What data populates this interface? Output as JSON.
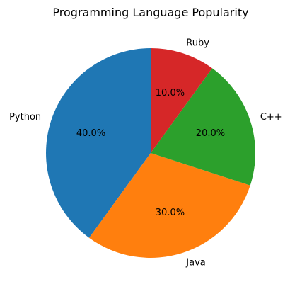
{
  "chart_data": {
    "type": "pie",
    "title": "Programming Language Popularity",
    "categories": [
      "Python",
      "Java",
      "C++",
      "Ruby"
    ],
    "values": [
      40,
      30,
      20,
      10
    ],
    "percent_labels": [
      "40.0%",
      "30.0%",
      "20.0%",
      "10.0%"
    ],
    "colors": [
      "#1f77b4",
      "#ff7f0e",
      "#2ca02c",
      "#d62728"
    ],
    "start_angle_deg": 90,
    "direction": "counterclockwise"
  }
}
